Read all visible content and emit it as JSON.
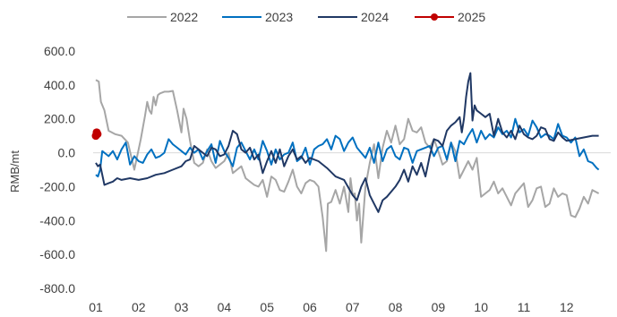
{
  "chart_data": {
    "type": "line",
    "title": "",
    "xlabel": "",
    "ylabel": "RMB/mt",
    "ylim": [
      -800,
      600
    ],
    "yticks": [
      "600.0",
      "400.0",
      "200.0",
      "0.0",
      "-200.0",
      "-400.0",
      "-600.0",
      "-800.0"
    ],
    "ytick_values": [
      600,
      400,
      200,
      0,
      -200,
      -400,
      -600,
      -800
    ],
    "xticks": [
      "01",
      "02",
      "03",
      "04",
      "05",
      "06",
      "07",
      "08",
      "09",
      "10",
      "11",
      "12"
    ],
    "xlim": [
      1,
      12.9
    ],
    "grid": false,
    "legend_position": "top",
    "series": [
      {
        "name": "2022",
        "color": "#a6a6a6",
        "x": [
          1.0,
          1.07,
          1.12,
          1.2,
          1.3,
          1.45,
          1.6,
          1.75,
          1.9,
          2.05,
          2.1,
          2.15,
          2.2,
          2.25,
          2.3,
          2.35,
          2.4,
          2.45,
          2.5,
          2.6,
          2.7,
          2.8,
          2.9,
          3.0,
          3.05,
          3.12,
          3.2,
          3.3,
          3.4,
          3.5,
          3.6,
          3.7,
          3.8,
          3.9,
          4.0,
          4.1,
          4.2,
          4.3,
          4.4,
          4.5,
          4.6,
          4.7,
          4.8,
          4.9,
          5.0,
          5.1,
          5.2,
          5.3,
          5.4,
          5.5,
          5.6,
          5.7,
          5.8,
          5.9,
          6.0,
          6.1,
          6.2,
          6.3,
          6.38,
          6.42,
          6.5,
          6.6,
          6.7,
          6.8,
          6.9,
          6.95,
          7.0,
          7.05,
          7.1,
          7.15,
          7.2,
          7.3,
          7.4,
          7.5,
          7.6,
          7.7,
          7.8,
          7.9,
          8.0,
          8.1,
          8.2,
          8.3,
          8.4,
          8.5,
          8.6,
          8.7,
          8.8,
          8.9,
          9.0,
          9.1,
          9.2,
          9.3,
          9.4,
          9.5,
          9.6,
          9.7,
          9.8,
          9.9,
          10.0,
          10.1,
          10.2,
          10.3,
          10.4,
          10.5,
          10.6,
          10.7,
          10.8,
          10.9,
          11.0,
          11.1,
          11.2,
          11.3,
          11.4,
          11.5,
          11.6,
          11.7,
          11.8,
          11.9,
          12.0,
          12.1,
          12.2,
          12.3,
          12.4,
          12.5,
          12.6,
          12.75
        ],
        "y": [
          430,
          420,
          300,
          250,
          130,
          110,
          100,
          60,
          -100,
          80,
          150,
          220,
          300,
          250,
          230,
          330,
          280,
          340,
          350,
          360,
          360,
          365,
          250,
          120,
          260,
          200,
          70,
          -60,
          -80,
          -60,
          20,
          -50,
          -90,
          -70,
          -50,
          0,
          -120,
          -100,
          -80,
          -150,
          -170,
          -190,
          -200,
          -160,
          -260,
          -140,
          -160,
          -220,
          -230,
          -170,
          -100,
          -200,
          -240,
          -180,
          -160,
          -170,
          -200,
          -380,
          -580,
          -300,
          -290,
          -220,
          -300,
          -200,
          -350,
          -150,
          -250,
          -240,
          -400,
          -300,
          -530,
          -200,
          -60,
          50,
          -150,
          30,
          130,
          60,
          160,
          50,
          80,
          200,
          130,
          120,
          150,
          60,
          30,
          80,
          10,
          -70,
          -50,
          60,
          10,
          -150,
          -100,
          -50,
          -100,
          -30,
          -260,
          -240,
          -220,
          -170,
          -240,
          -210,
          -260,
          -310,
          -240,
          -210,
          -180,
          -320,
          -280,
          -210,
          -200,
          -320,
          -300,
          -210,
          -260,
          -240,
          -250,
          -370,
          -380,
          -330,
          -260,
          -300,
          -220,
          -240
        ]
      },
      {
        "name": "2023",
        "color": "#0070c0",
        "x": [
          1.0,
          1.05,
          1.1,
          1.15,
          1.2,
          1.3,
          1.4,
          1.5,
          1.6,
          1.7,
          1.8,
          1.9,
          2.0,
          2.1,
          2.2,
          2.3,
          2.4,
          2.5,
          2.6,
          2.7,
          2.8,
          2.9,
          3.0,
          3.1,
          3.2,
          3.3,
          3.4,
          3.5,
          3.6,
          3.7,
          3.8,
          3.9,
          4.0,
          4.1,
          4.2,
          4.3,
          4.4,
          4.5,
          4.6,
          4.7,
          4.8,
          4.9,
          5.0,
          5.1,
          5.2,
          5.3,
          5.4,
          5.5,
          5.6,
          5.7,
          5.8,
          5.9,
          6.0,
          6.1,
          6.2,
          6.3,
          6.4,
          6.5,
          6.6,
          6.7,
          6.8,
          6.9,
          7.0,
          7.1,
          7.2,
          7.3,
          7.4,
          7.5,
          7.6,
          7.7,
          7.8,
          7.9,
          8.0,
          8.1,
          8.2,
          8.3,
          8.4,
          8.5,
          8.6,
          8.7,
          8.8,
          8.9,
          9.0,
          9.1,
          9.2,
          9.3,
          9.4,
          9.5,
          9.6,
          9.7,
          9.8,
          9.9,
          10.0,
          10.1,
          10.2,
          10.3,
          10.4,
          10.5,
          10.6,
          10.7,
          10.8,
          10.9,
          11.0,
          11.1,
          11.2,
          11.3,
          11.4,
          11.5,
          11.6,
          11.7,
          11.8,
          11.9,
          12.0,
          12.1,
          12.2,
          12.3,
          12.4,
          12.5,
          12.6,
          12.7,
          12.75
        ],
        "y": [
          -130,
          -140,
          -100,
          10,
          0,
          -20,
          10,
          -40,
          20,
          60,
          -70,
          -20,
          -50,
          -60,
          -10,
          20,
          -30,
          -20,
          0,
          80,
          50,
          30,
          10,
          -10,
          30,
          0,
          20,
          -40,
          10,
          50,
          -60,
          70,
          10,
          -30,
          -80,
          30,
          60,
          10,
          -40,
          20,
          -40,
          70,
          10,
          -70,
          20,
          -40,
          -10,
          0,
          60,
          -50,
          -30,
          30,
          -70,
          20,
          40,
          50,
          80,
          20,
          100,
          80,
          10,
          60,
          90,
          30,
          0,
          -30,
          30,
          -60,
          60,
          -50,
          20,
          40,
          -20,
          -40,
          30,
          20,
          -60,
          10,
          20,
          30,
          40,
          -20,
          30,
          40,
          -40,
          60,
          -50,
          70,
          50,
          100,
          140,
          60,
          130,
          80,
          110,
          90,
          150,
          110,
          130,
          90,
          200,
          120,
          140,
          100,
          190,
          150,
          90,
          110,
          100,
          80,
          170,
          100,
          90,
          60,
          90,
          -20,
          20,
          -50,
          -60,
          -90,
          -100
        ]
      },
      {
        "name": "2024",
        "color": "#203864",
        "x": [
          1.0,
          1.05,
          1.1,
          1.2,
          1.3,
          1.4,
          1.5,
          1.6,
          1.8,
          2.0,
          2.2,
          2.4,
          2.6,
          2.8,
          3.0,
          3.1,
          3.2,
          3.3,
          3.4,
          3.5,
          3.6,
          3.7,
          3.8,
          3.9,
          4.0,
          4.1,
          4.2,
          4.3,
          4.4,
          4.5,
          4.6,
          4.7,
          4.8,
          4.9,
          5.0,
          5.1,
          5.2,
          5.3,
          5.4,
          5.5,
          5.6,
          5.7,
          5.8,
          5.9,
          6.0,
          6.2,
          6.4,
          6.6,
          6.8,
          7.0,
          7.1,
          7.2,
          7.3,
          7.4,
          7.5,
          7.6,
          7.7,
          7.8,
          7.9,
          8.0,
          8.1,
          8.2,
          8.3,
          8.4,
          8.5,
          8.6,
          8.7,
          8.8,
          8.9,
          9.0,
          9.1,
          9.2,
          9.3,
          9.4,
          9.5,
          9.55,
          9.6,
          9.65,
          9.7,
          9.75,
          9.8,
          9.85,
          9.9,
          10.0,
          10.1,
          10.2,
          10.3,
          10.4,
          10.5,
          10.6,
          10.7,
          10.8,
          10.9,
          11.0,
          11.1,
          11.2,
          11.3,
          11.4,
          11.5,
          11.6,
          11.7,
          11.8,
          11.9,
          12.0,
          12.2,
          12.4,
          12.6,
          12.75
        ],
        "y": [
          -60,
          -80,
          -70,
          -190,
          -180,
          -170,
          -150,
          -160,
          -150,
          -160,
          -150,
          -130,
          -120,
          -100,
          -80,
          -50,
          -40,
          40,
          20,
          0,
          -20,
          30,
          20,
          -20,
          -10,
          40,
          130,
          110,
          20,
          0,
          30,
          -40,
          -10,
          -120,
          -50,
          10,
          -60,
          20,
          -80,
          -20,
          20,
          -40,
          -20,
          -60,
          -30,
          -50,
          -90,
          -140,
          -160,
          -250,
          -280,
          -200,
          -150,
          -250,
          -300,
          -350,
          -280,
          -260,
          -230,
          -200,
          -160,
          -100,
          -170,
          -80,
          -130,
          -60,
          -140,
          -20,
          80,
          70,
          40,
          130,
          160,
          180,
          210,
          120,
          200,
          330,
          420,
          470,
          190,
          280,
          250,
          230,
          210,
          230,
          100,
          200,
          120,
          90,
          130,
          80,
          160,
          110,
          90,
          80,
          100,
          150,
          140,
          80,
          70,
          120,
          90,
          70,
          80,
          90,
          100,
          100
        ]
      },
      {
        "name": "2025",
        "color": "#c00000",
        "x": [
          1.0,
          1.02,
          1.04
        ],
        "y": [
          100,
          120,
          110
        ]
      }
    ]
  }
}
